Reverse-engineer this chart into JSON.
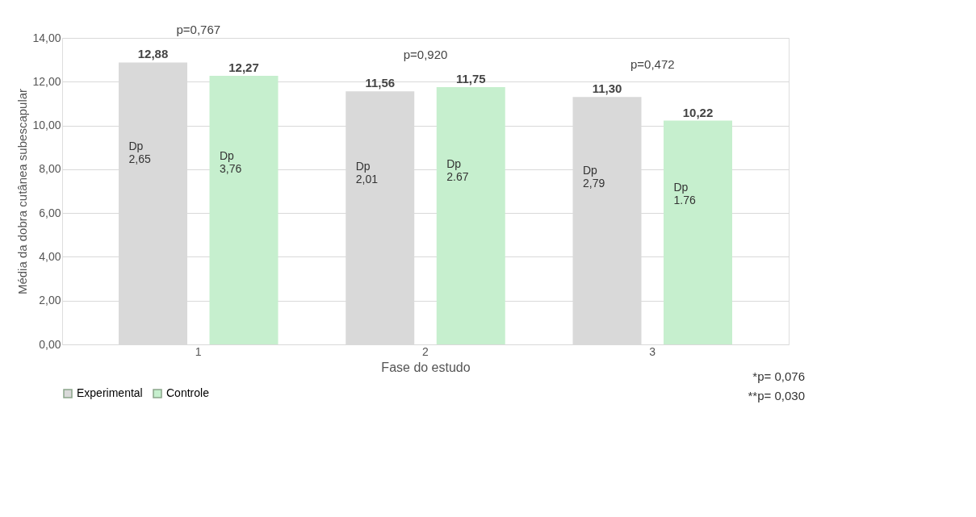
{
  "chart_data": {
    "type": "bar",
    "categories": [
      "1",
      "2",
      "3"
    ],
    "xlabel": "Fase do estudo",
    "ylabel": "Média da dobra cutânea subescapular",
    "series": [
      {
        "name": "Experimental",
        "color": "#d9d9d9",
        "values": [
          12.88,
          11.56,
          11.3
        ],
        "value_labels": [
          "12,88",
          "11,56",
          "11,30"
        ]
      },
      {
        "name": "Controle",
        "color": "#c6efce",
        "values": [
          12.27,
          11.75,
          10.22
        ],
        "value_labels": [
          "12,27",
          "11,75",
          "10,22"
        ]
      }
    ],
    "ylim": [
      0,
      14
    ],
    "yticks": [
      {
        "value": 0,
        "label": "0,00"
      },
      {
        "value": 2,
        "label": "2,00"
      },
      {
        "value": 4,
        "label": "4,00"
      },
      {
        "value": 6,
        "label": "6,00"
      },
      {
        "value": 8,
        "label": "8,00"
      },
      {
        "value": 10,
        "label": "10,00"
      },
      {
        "value": 12,
        "label": "12,00"
      },
      {
        "value": 14,
        "label": "14,00"
      }
    ],
    "grid": "y",
    "legend": "bottom",
    "annotations": [
      "p=0,767",
      "p=0,920",
      "p=0,472",
      "Dp\n2,65",
      "Dp\n3,76",
      "Dp\n2,01",
      "Dp\n2.67",
      "Dp\n2,79",
      "Dp\n1.76",
      "*p= 0,076",
      "**p= 0,030"
    ]
  }
}
